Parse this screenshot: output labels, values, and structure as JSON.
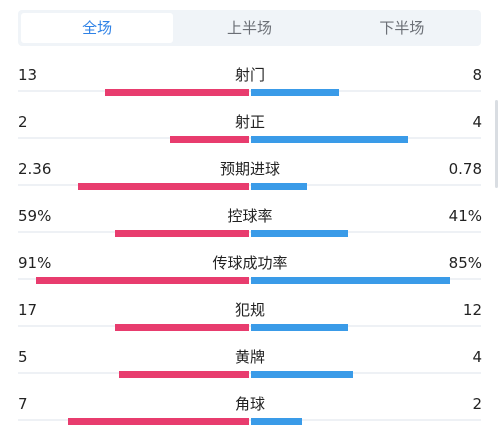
{
  "tabs": [
    {
      "label": "全场",
      "active": true
    },
    {
      "label": "上半场",
      "active": false
    },
    {
      "label": "下半场",
      "active": false
    }
  ],
  "colors": {
    "home": "#e83c6e",
    "away": "#3a9be8",
    "accent": "#2f82e6"
  },
  "stats": [
    {
      "label": "射门",
      "home": "13",
      "away": "8",
      "home_fill": 0.31,
      "away_fill": 0.19
    },
    {
      "label": "射正",
      "home": "2",
      "away": "4",
      "home_fill": 0.17,
      "away_fill": 0.34
    },
    {
      "label": "预期进球",
      "home": "2.36",
      "away": "0.78",
      "home_fill": 0.37,
      "away_fill": 0.12
    },
    {
      "label": "控球率",
      "home": "59%",
      "away": "41%",
      "home_fill": 0.29,
      "away_fill": 0.21
    },
    {
      "label": "传球成功率",
      "home": "91%",
      "away": "85%",
      "home_fill": 0.46,
      "away_fill": 0.43
    },
    {
      "label": "犯规",
      "home": "17",
      "away": "12",
      "home_fill": 0.29,
      "away_fill": 0.21
    },
    {
      "label": "黄牌",
      "home": "5",
      "away": "4",
      "home_fill": 0.28,
      "away_fill": 0.22
    },
    {
      "label": "角球",
      "home": "7",
      "away": "2",
      "home_fill": 0.39,
      "away_fill": 0.11
    }
  ]
}
